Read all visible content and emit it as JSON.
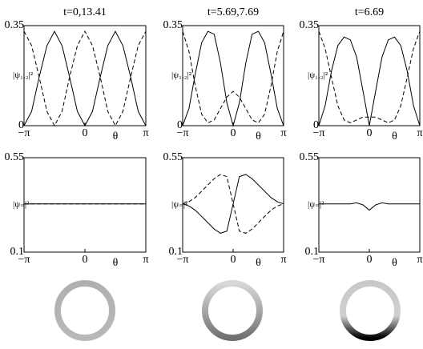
{
  "chart_data": [
    {
      "type": "line",
      "title": "t=0,13.41",
      "ylabel": "|ψ₁,₂|²",
      "xlabel": "θ",
      "x": [
        -3.14,
        -2.75,
        -2.36,
        -1.96,
        -1.57,
        -1.18,
        -0.79,
        -0.39,
        0,
        0.39,
        0.79,
        1.18,
        1.57,
        1.96,
        2.36,
        2.75,
        3.14
      ],
      "series": [
        {
          "color": "#000000",
          "dashed": false,
          "values": [
            0,
            0.05,
            0.17,
            0.28,
            0.33,
            0.28,
            0.17,
            0.05,
            0,
            0.05,
            0.17,
            0.28,
            0.33,
            0.28,
            0.17,
            0.05,
            0
          ]
        },
        {
          "color": "#000000",
          "dashed": true,
          "values": [
            0.33,
            0.28,
            0.17,
            0.05,
            0,
            0.05,
            0.17,
            0.28,
            0.33,
            0.28,
            0.17,
            0.05,
            0,
            0.05,
            0.17,
            0.28,
            0.33
          ]
        }
      ],
      "xlim": [
        -3.14159,
        3.14159
      ],
      "xticks": [
        {
          "value": -3.14159,
          "label": "−π"
        },
        0,
        {
          "value": 3.14159,
          "label": "π"
        }
      ],
      "ylim": [
        0,
        0.35
      ],
      "yticks": [
        0,
        0.35
      ]
    },
    {
      "type": "line",
      "title": "t=5.69,7.69",
      "ylabel": "|ψ₁,₂|²",
      "xlabel": "θ",
      "x": [
        -3.14,
        -2.75,
        -2.36,
        -1.96,
        -1.57,
        -1.18,
        -0.79,
        -0.39,
        0,
        0.39,
        0.79,
        1.18,
        1.57,
        1.96,
        2.36,
        2.75,
        3.14
      ],
      "series": [
        {
          "color": "#000000",
          "dashed": false,
          "values": [
            0,
            0.06,
            0.18,
            0.29,
            0.33,
            0.32,
            0.22,
            0.08,
            0,
            0.08,
            0.22,
            0.32,
            0.33,
            0.29,
            0.18,
            0.06,
            0
          ]
        },
        {
          "color": "#000000",
          "dashed": true,
          "values": [
            0.33,
            0.26,
            0.14,
            0.04,
            0.01,
            0.02,
            0.06,
            0.1,
            0.12,
            0.1,
            0.06,
            0.02,
            0.01,
            0.04,
            0.14,
            0.26,
            0.33
          ]
        }
      ],
      "xlim": [
        -3.14159,
        3.14159
      ],
      "xticks": [
        {
          "value": -3.14159,
          "label": "−π"
        },
        0,
        {
          "value": 3.14159,
          "label": "π"
        }
      ],
      "ylim": [
        0,
        0.35
      ],
      "yticks": [
        0,
        0.35
      ]
    },
    {
      "type": "line",
      "title": "t=6.69",
      "ylabel": "|ψ₁,₂|²",
      "xlabel": "θ",
      "x": [
        -3.14,
        -2.75,
        -2.36,
        -1.96,
        -1.57,
        -1.18,
        -0.79,
        -0.39,
        0,
        0.39,
        0.79,
        1.18,
        1.57,
        1.96,
        2.36,
        2.75,
        3.14
      ],
      "series": [
        {
          "color": "#000000",
          "dashed": false,
          "values": [
            0,
            0.07,
            0.19,
            0.28,
            0.31,
            0.3,
            0.24,
            0.12,
            0,
            0.12,
            0.24,
            0.3,
            0.31,
            0.28,
            0.19,
            0.07,
            0
          ]
        },
        {
          "color": "#000000",
          "dashed": true,
          "values": [
            0.33,
            0.27,
            0.17,
            0.07,
            0.02,
            0.01,
            0.02,
            0.03,
            0.03,
            0.03,
            0.02,
            0.01,
            0.02,
            0.07,
            0.17,
            0.27,
            0.33
          ]
        }
      ],
      "xlim": [
        -3.14159,
        3.14159
      ],
      "xticks": [
        {
          "value": -3.14159,
          "label": "−π"
        },
        0,
        {
          "value": 3.14159,
          "label": "π"
        }
      ],
      "ylim": [
        0,
        0.35
      ],
      "yticks": [
        0,
        0.35
      ]
    },
    {
      "type": "line",
      "ylabel": "|ψ₌|²",
      "xlabel": "θ",
      "x": [
        -3.14,
        -2.75,
        -2.36,
        -1.96,
        -1.57,
        -1.18,
        -0.79,
        -0.39,
        0,
        0.39,
        0.79,
        1.18,
        1.57,
        1.96,
        2.36,
        2.75,
        3.14
      ],
      "series": [
        {
          "color": "#000000",
          "dashed": false,
          "values": [
            0.33,
            0.33,
            0.33,
            0.33,
            0.33,
            0.33,
            0.33,
            0.33,
            0.33,
            0.33,
            0.33,
            0.33,
            0.33,
            0.33,
            0.33,
            0.33,
            0.33
          ]
        },
        {
          "color": "#000000",
          "dashed": true,
          "values": [
            0.33,
            0.33,
            0.33,
            0.33,
            0.33,
            0.33,
            0.33,
            0.33,
            0.33,
            0.33,
            0.33,
            0.33,
            0.33,
            0.33,
            0.33,
            0.33,
            0.33
          ]
        }
      ],
      "xlim": [
        -3.14159,
        3.14159
      ],
      "xticks": [
        {
          "value": -3.14159,
          "label": "−π"
        },
        0,
        {
          "value": 3.14159,
          "label": "π"
        }
      ],
      "ylim": [
        0.1,
        0.55
      ],
      "yticks": [
        0.1,
        0.55
      ]
    },
    {
      "type": "line",
      "ylabel": "|ψ₌|²",
      "xlabel": "θ",
      "x": [
        -3.14,
        -2.75,
        -2.36,
        -1.96,
        -1.57,
        -1.18,
        -0.79,
        -0.39,
        0,
        0.39,
        0.79,
        1.18,
        1.57,
        1.96,
        2.36,
        2.75,
        3.14
      ],
      "series": [
        {
          "color": "#000000",
          "dashed": false,
          "values": [
            0.33,
            0.32,
            0.3,
            0.27,
            0.24,
            0.21,
            0.19,
            0.2,
            0.33,
            0.46,
            0.47,
            0.45,
            0.42,
            0.39,
            0.36,
            0.34,
            0.33
          ]
        },
        {
          "color": "#000000",
          "dashed": true,
          "values": [
            0.33,
            0.34,
            0.36,
            0.39,
            0.42,
            0.45,
            0.47,
            0.46,
            0.33,
            0.2,
            0.19,
            0.21,
            0.24,
            0.27,
            0.3,
            0.32,
            0.33
          ]
        }
      ],
      "xlim": [
        -3.14159,
        3.14159
      ],
      "xticks": [
        {
          "value": -3.14159,
          "label": "−π"
        },
        0,
        {
          "value": 3.14159,
          "label": "π"
        }
      ],
      "ylim": [
        0.1,
        0.55
      ],
      "yticks": [
        0.1,
        0.55
      ]
    },
    {
      "type": "line",
      "ylabel": "|ψ₌|²",
      "xlabel": "θ",
      "x": [
        -3.14,
        -2.75,
        -2.36,
        -1.96,
        -1.57,
        -1.18,
        -0.79,
        -0.39,
        0,
        0.39,
        0.79,
        1.18,
        1.57,
        1.96,
        2.36,
        2.75,
        3.14
      ],
      "series": [
        {
          "color": "#000000",
          "dashed": false,
          "values": [
            0.33,
            0.33,
            0.33,
            0.33,
            0.33,
            0.33,
            0.335,
            0.325,
            0.3,
            0.325,
            0.335,
            0.33,
            0.33,
            0.33,
            0.33,
            0.33,
            0.33
          ]
        }
      ],
      "xlim": [
        -3.14159,
        3.14159
      ],
      "xticks": [
        {
          "value": -3.14159,
          "label": "−π"
        },
        0,
        {
          "value": 3.14159,
          "label": "π"
        }
      ],
      "ylim": [
        0.1,
        0.55
      ],
      "yticks": [
        0.1,
        0.55
      ]
    }
  ]
}
